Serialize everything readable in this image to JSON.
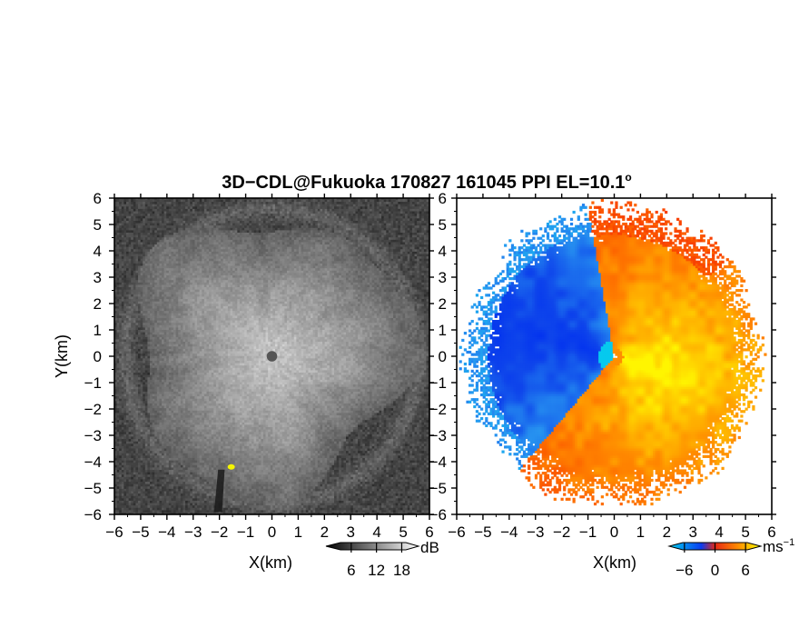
{
  "figure": {
    "title_prefix": "3D−CDL@Fukuoka 170827 161045 PPI EL=10.1",
    "title_degree": "o"
  },
  "chart_data": [
    {
      "type": "heatmap",
      "name": "backscatter-intensity-ppi",
      "xlabel": "X(km)",
      "ylabel": "Y(km)",
      "xlim": [
        -6,
        6
      ],
      "ylim": [
        -6,
        6
      ],
      "xticks": [
        -6,
        -5,
        -4,
        -3,
        -2,
        -1,
        0,
        1,
        2,
        3,
        4,
        5,
        6
      ],
      "yticks": [
        -6,
        -5,
        -4,
        -3,
        -2,
        -1,
        0,
        1,
        2,
        3,
        4,
        5,
        6
      ],
      "xtick_labels": [
        "−6",
        "−5",
        "−4",
        "−3",
        "−2",
        "−1",
        "0",
        "1",
        "2",
        "3",
        "4",
        "5",
        "6"
      ],
      "ytick_labels": [
        "−6",
        "−5",
        "−4",
        "−3",
        "−2",
        "−1",
        "0",
        "1",
        "2",
        "3",
        "4",
        "5",
        "6"
      ],
      "colorbar": {
        "unit": "dB",
        "ticks": [
          6,
          12,
          18
        ],
        "range": [
          0,
          22
        ],
        "colors": [
          "#000000",
          "#ffffff"
        ]
      },
      "colormap": "grayscale",
      "background_color": "#2b2b2b",
      "features": {
        "echo_radius_km": 5.3,
        "center_blank_radius_km": 0.2,
        "center_peak_value": 18,
        "edge_value": 8,
        "hotspot": {
          "x": -1.55,
          "y": -4.2,
          "color": "#f5f500"
        },
        "shadow_sector": {
          "x_start": -2.05,
          "x_end": -1.8,
          "y_start": -4.3,
          "y_end": -5.9
        }
      }
    },
    {
      "type": "heatmap",
      "name": "radial-velocity-ppi",
      "xlabel": "X(km)",
      "ylabel": "",
      "xlim": [
        -6,
        6
      ],
      "ylim": [
        -6,
        6
      ],
      "xticks": [
        -6,
        -5,
        -4,
        -3,
        -2,
        -1,
        0,
        1,
        2,
        3,
        4,
        5,
        6
      ],
      "yticks": [
        -6,
        -5,
        -4,
        -3,
        -2,
        -1,
        0,
        1,
        2,
        3,
        4,
        5,
        6
      ],
      "xtick_labels": [
        "−6",
        "−5",
        "−4",
        "−3",
        "−2",
        "−1",
        "0",
        "1",
        "2",
        "3",
        "4",
        "5",
        "6"
      ],
      "ytick_labels": [
        "−6",
        "−5",
        "−4",
        "−3",
        "−2",
        "−1",
        "0",
        "1",
        "2",
        "3",
        "4",
        "5",
        "6"
      ],
      "colorbar": {
        "unit": "ms",
        "unit_exponent": "−1",
        "ticks": [
          -6,
          0,
          6
        ],
        "range": [
          -9,
          9
        ],
        "colors": [
          "#00c8e6",
          "#0a3cf0",
          "#e62814",
          "#ff8c00",
          "#ffff00"
        ]
      },
      "colormap": "velocity-diverging",
      "background_color": "#ffffff",
      "features": {
        "max_range_km": 6.0,
        "approaching_sector_deg": [
          100,
          230
        ],
        "receding_sector_deg": [
          230,
          460
        ],
        "approaching_peak": -8,
        "receding_peak": 7
      }
    }
  ]
}
